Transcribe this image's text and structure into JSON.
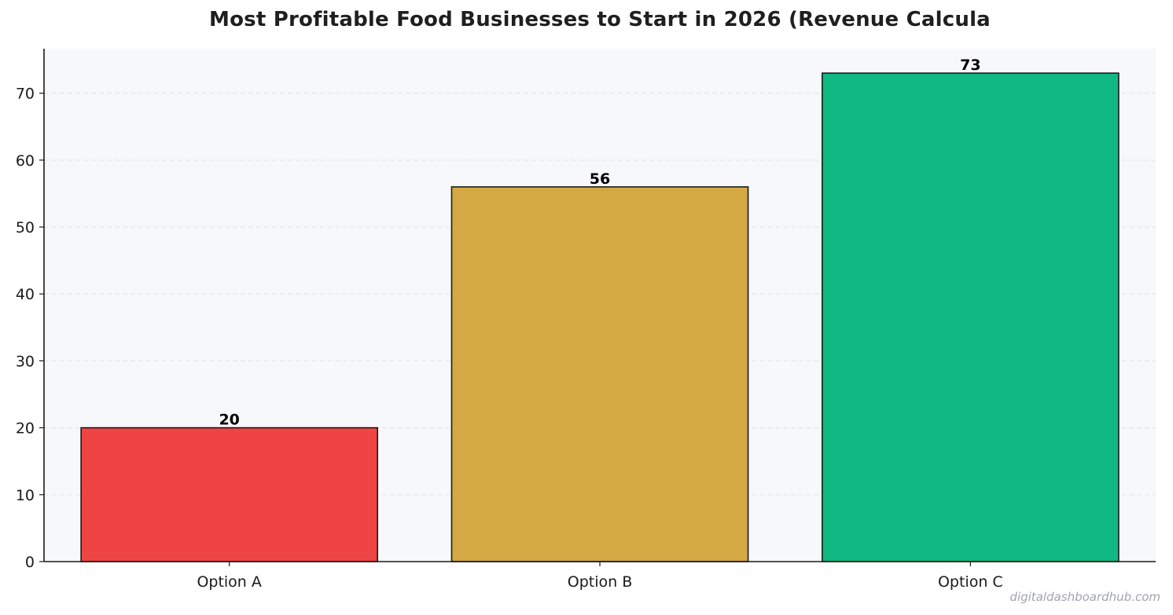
{
  "chart_data": {
    "type": "bar",
    "title": "Most Profitable Food Businesses to Start in 2026 (Revenue Calcula",
    "xlabel": "",
    "ylabel": "",
    "categories": [
      "Option A",
      "Option B",
      "Option C"
    ],
    "values": [
      20,
      56,
      73
    ],
    "data_labels": [
      "20",
      "56",
      "73"
    ],
    "y_ticks": [
      0,
      10,
      20,
      30,
      40,
      50,
      60,
      70
    ],
    "ylim": [
      0,
      76.65
    ],
    "grid": "horizontal dashed",
    "legend": "none",
    "colors": {
      "bars": [
        "#ef4444",
        "#d4a843",
        "#10b981"
      ],
      "bar_edge": "#1a1a1a",
      "plot_background": "#f7f8fa",
      "grid": "#e3e5e8",
      "axis": "#1a1a1a"
    }
  },
  "watermark": "digitaldashboardhub.com"
}
